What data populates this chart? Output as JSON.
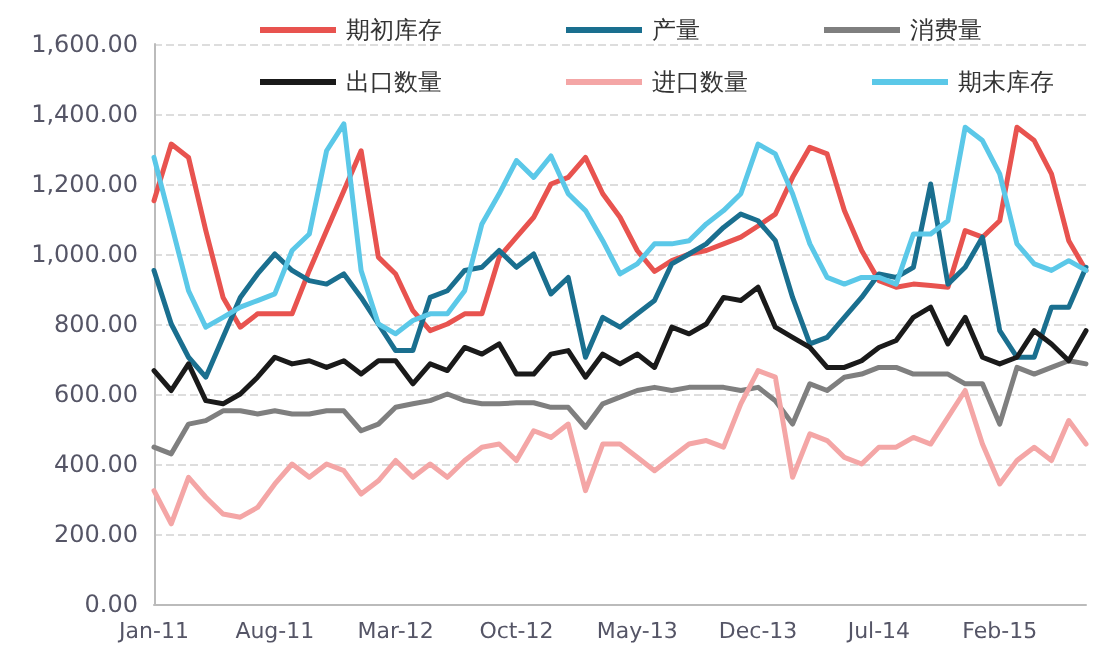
{
  "chart_data": {
    "type": "line",
    "categories": [
      "Jan-11",
      null,
      null,
      null,
      null,
      null,
      null,
      "Aug-11",
      null,
      null,
      null,
      null,
      null,
      null,
      "Mar-12",
      null,
      null,
      null,
      null,
      null,
      null,
      "Oct-12",
      null,
      null,
      null,
      null,
      null,
      null,
      "May-13",
      null,
      null,
      null,
      null,
      null,
      null,
      "Dec-13",
      null,
      null,
      null,
      null,
      null,
      null,
      "Jul-14",
      null,
      null,
      null,
      null,
      null,
      null,
      "Feb-15",
      null,
      null,
      null,
      null,
      null
    ],
    "series": [
      {
        "name": "期初库存",
        "color": "#e8534f",
        "values": [
          1152,
          1314,
          1276,
          1067,
          876,
          791,
          829,
          829,
          829,
          953,
          1067,
          1181,
          1295,
          991,
          943,
          838,
          781,
          800,
          829,
          829,
          991,
          1048,
          1105,
          1200,
          1219,
          1276,
          1172,
          1105,
          1010,
          950,
          981,
          1000,
          1010,
          1029,
          1048,
          1080,
          1114,
          1219,
          1305,
          1286,
          1124,
          1010,
          924,
          905,
          914,
          910,
          905,
          1067,
          1048,
          1095,
          1362,
          1324,
          1229,
          1038,
          953
        ]
      },
      {
        "name": "产量",
        "color": "#1a6f8f",
        "values": [
          953,
          800,
          705,
          648,
          762,
          876,
          943,
          1000,
          953,
          924,
          914,
          943,
          876,
          800,
          724,
          724,
          876,
          895,
          953,
          962,
          1010,
          962,
          1000,
          886,
          933,
          705,
          819,
          791,
          829,
          867,
          972,
          1000,
          1029,
          1076,
          1114,
          1095,
          1038,
          876,
          743,
          762,
          819,
          876,
          943,
          933,
          962,
          1200,
          914,
          962,
          1048,
          781,
          705,
          705,
          848,
          848,
          962
        ]
      },
      {
        "name": "消费量",
        "color": "#7f7f7f",
        "values": [
          448,
          429,
          514,
          524,
          552,
          552,
          543,
          552,
          543,
          543,
          552,
          552,
          495,
          514,
          562,
          572,
          581,
          600,
          581,
          572,
          572,
          575,
          575,
          562,
          562,
          505,
          572,
          591,
          610,
          619,
          610,
          619,
          619,
          619,
          610,
          619,
          581,
          514,
          629,
          610,
          648,
          657,
          676,
          676,
          657,
          657,
          657,
          629,
          629,
          514,
          676,
          657,
          676,
          695,
          686
        ]
      },
      {
        "name": "出口数量",
        "color": "#1a1a1a",
        "values": [
          667,
          610,
          686,
          581,
          572,
          600,
          648,
          705,
          686,
          695,
          676,
          695,
          657,
          695,
          695,
          629,
          686,
          667,
          733,
          714,
          743,
          657,
          657,
          714,
          724,
          648,
          714,
          686,
          714,
          676,
          791,
          772,
          800,
          876,
          867,
          905,
          791,
          762,
          733,
          676,
          676,
          695,
          733,
          753,
          819,
          848,
          743,
          819,
          705,
          686,
          705,
          781,
          743,
          695,
          781
        ]
      },
      {
        "name": "进口数量",
        "color": "#f4a6a6",
        "values": [
          324,
          229,
          362,
          305,
          257,
          248,
          276,
          343,
          400,
          362,
          400,
          381,
          314,
          352,
          410,
          362,
          400,
          362,
          410,
          448,
          457,
          410,
          495,
          476,
          514,
          324,
          457,
          457,
          419,
          381,
          419,
          457,
          467,
          448,
          572,
          667,
          648,
          362,
          486,
          467,
          419,
          400,
          448,
          448,
          476,
          457,
          533,
          610,
          457,
          343,
          410,
          448,
          410,
          524,
          457
        ]
      },
      {
        "name": "期末库存",
        "color": "#5bc8e8",
        "values": [
          1276,
          1086,
          895,
          791,
          819,
          848,
          867,
          886,
          1010,
          1057,
          1295,
          1372,
          953,
          800,
          772,
          810,
          829,
          829,
          895,
          1086,
          1172,
          1267,
          1219,
          1280,
          1172,
          1124,
          1038,
          943,
          972,
          1029,
          1029,
          1038,
          1086,
          1124,
          1172,
          1314,
          1286,
          1172,
          1029,
          933,
          914,
          933,
          933,
          914,
          1057,
          1057,
          1095,
          1362,
          1324,
          1229,
          1029,
          972,
          953,
          981,
          953
        ]
      }
    ],
    "ylim": [
      0,
      1600
    ],
    "yticks": [
      {
        "value": 0,
        "label": "0.00"
      },
      {
        "value": 200,
        "label": "200.00"
      },
      {
        "value": 400,
        "label": "400.00"
      },
      {
        "value": 600,
        "label": "600.00"
      },
      {
        "value": 800,
        "label": "800.00"
      },
      {
        "value": 1000,
        "label": "1,000.00"
      },
      {
        "value": 1200,
        "label": "1,200.00"
      },
      {
        "value": 1400,
        "label": "1,400.00"
      },
      {
        "value": 1600,
        "label": "1,600.00"
      }
    ],
    "grid": "y",
    "legend": "top",
    "marker": "none",
    "line_style": "solid"
  }
}
